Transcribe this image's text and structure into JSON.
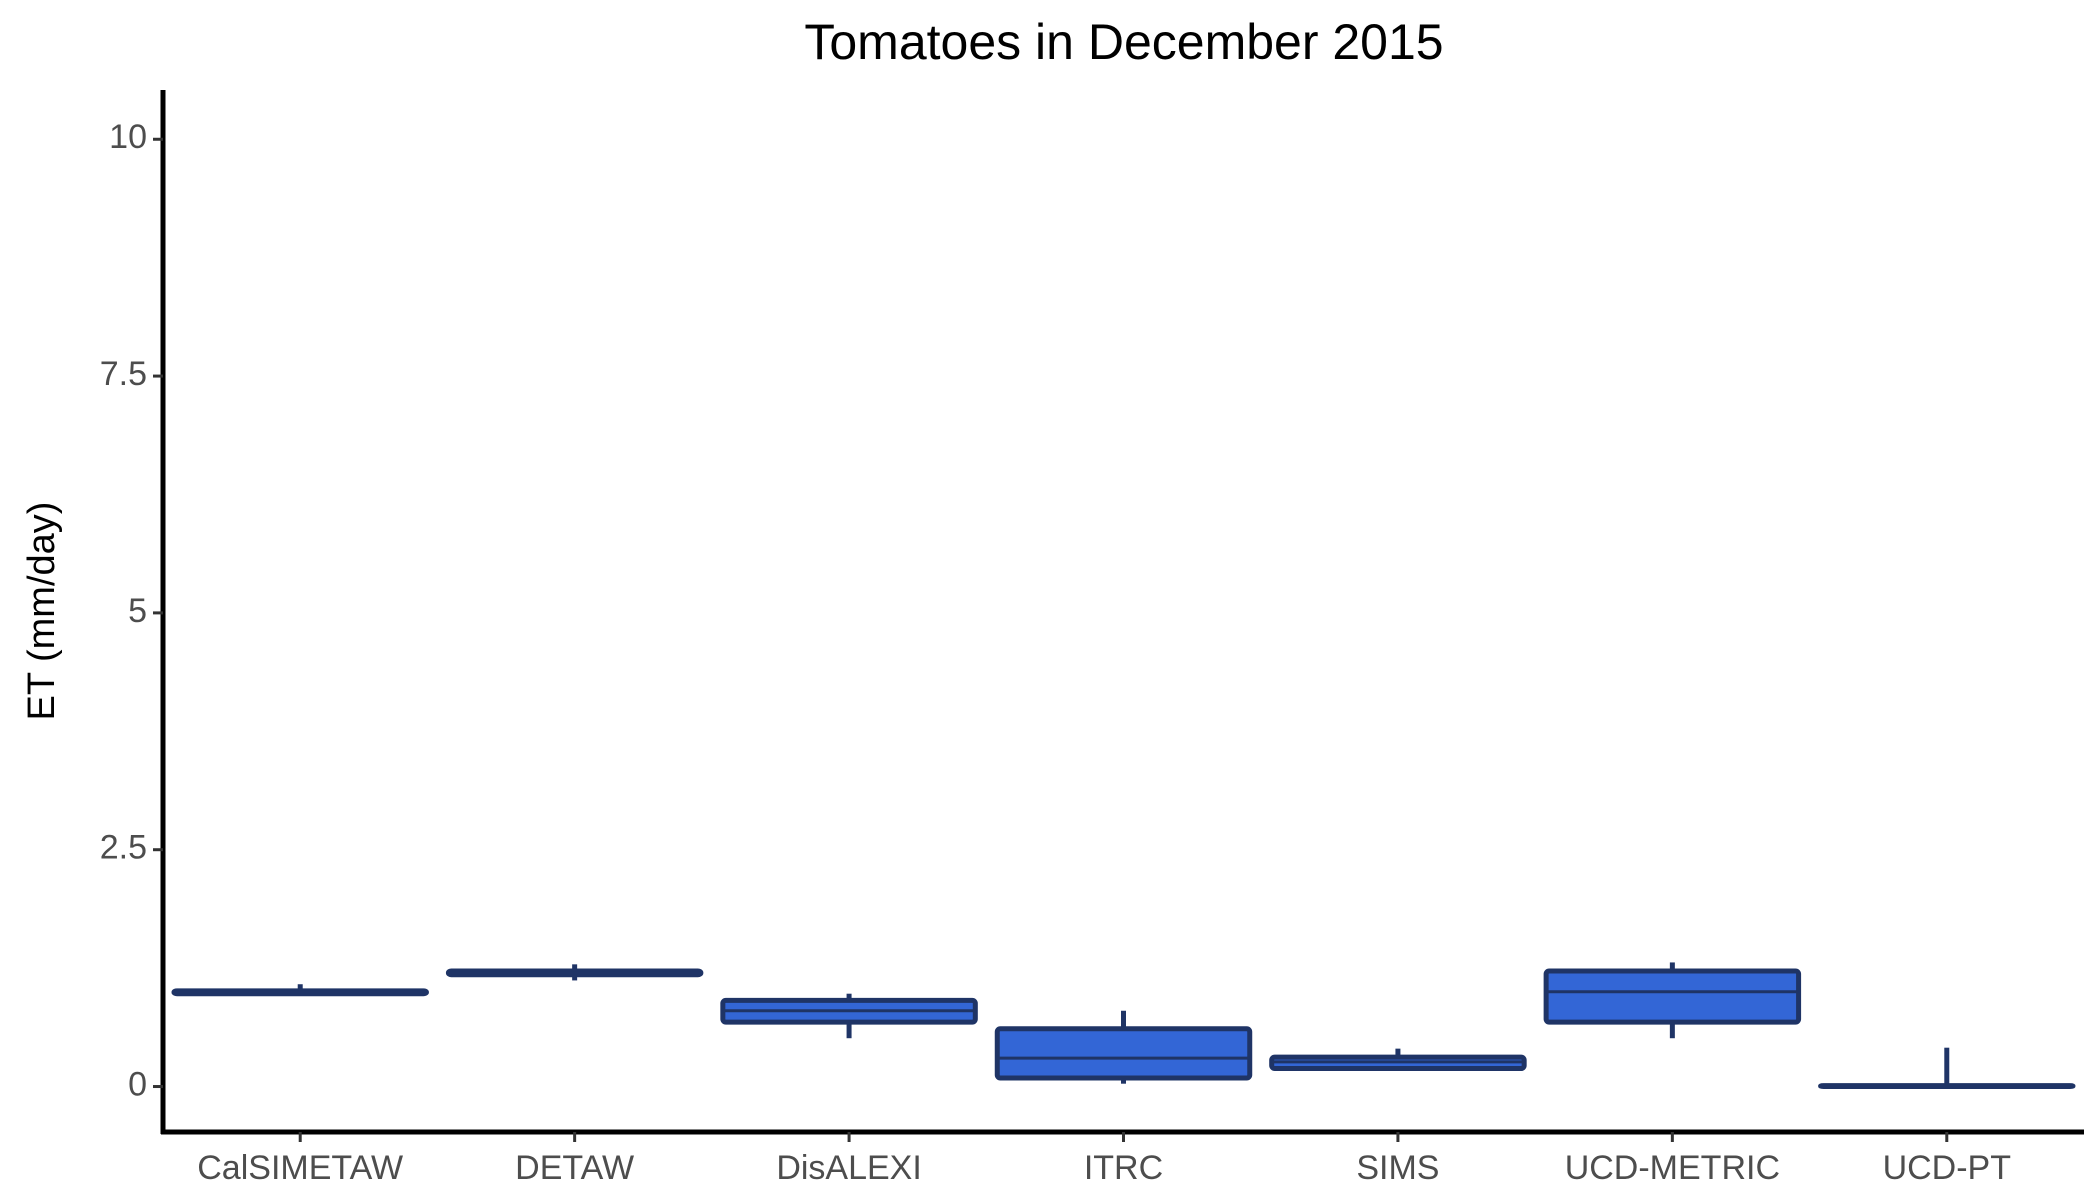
{
  "chart_data": {
    "type": "box",
    "title": "Tomatoes in December 2015",
    "y_label": "ET (mm/day)",
    "categories": [
      "CalSIMETAW",
      "DETAW",
      "DisALEXI",
      "ITRC",
      "SIMS",
      "UCD-METRIC",
      "UCD-PT"
    ],
    "min": [
      0.97,
      1.12,
      0.51,
      0.03,
      0.18,
      0.51,
      0
    ],
    "q1": [
      0.98,
      1.18,
      0.68,
      0.09,
      0.19,
      0.68,
      0
    ],
    "median": [
      1.0,
      1.2,
      0.8,
      0.3,
      0.26,
      1.0,
      0
    ],
    "q3": [
      1.01,
      1.22,
      0.91,
      0.61,
      0.31,
      1.22,
      0.01
    ],
    "max": [
      1.08,
      1.29,
      0.98,
      0.8,
      0.4,
      1.31,
      0.41
    ],
    "color": "#3366d6",
    "edge_color": "#1f3466",
    "ylim": [
      -0.48,
      10.52
    ],
    "yticks": [
      0,
      2.5,
      5,
      7.5,
      10
    ],
    "grid": false
  }
}
